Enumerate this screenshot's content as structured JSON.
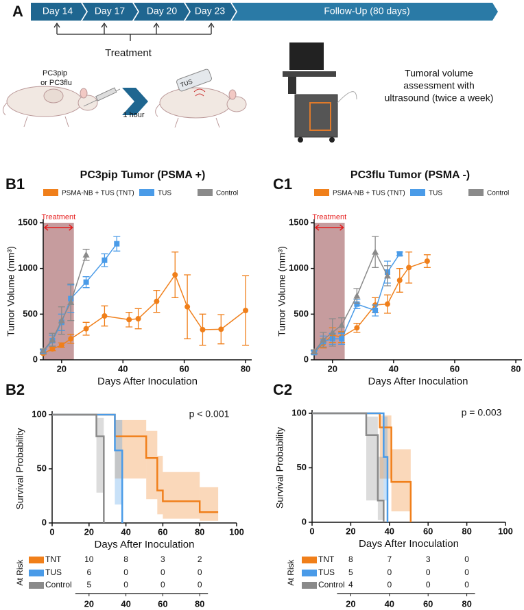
{
  "panel_a": {
    "label": "A",
    "timeline": [
      "Day 14",
      "Day 17",
      "Day 20",
      "Day 23",
      "Follow-Up (80 days)"
    ],
    "treatment": "Treatment",
    "cells": [
      "PC3pip",
      "or PC3flu"
    ],
    "device": "TUS",
    "delay": "1 hour",
    "assessment": [
      "Tumoral volume",
      "assessment with",
      "ultrasound (twice a week)"
    ]
  },
  "chart_data": [
    {
      "type": "line",
      "panel": "B1",
      "title": "PC3pip Tumor (PSMA +)",
      "x_label": "Days After Inoculation",
      "y_label": "Tumor Volume (mm³)",
      "annotation": "Treatment",
      "treatment_window": [
        14,
        24
      ],
      "xlim": [
        14,
        82
      ],
      "xticks": [
        20,
        40,
        60,
        80
      ],
      "ylim": [
        0,
        1500
      ],
      "yticks": [
        0,
        500,
        1000,
        1500
      ],
      "series": [
        {
          "name": "PSMA-NB + TUS (TNT)",
          "color": "#f07f1a",
          "marker": "circle",
          "x": [
            14,
            17,
            20,
            23,
            28,
            34,
            42,
            45,
            51,
            57,
            61,
            66,
            72,
            80
          ],
          "values": [
            70,
            120,
            160,
            230,
            340,
            480,
            440,
            450,
            640,
            930,
            580,
            330,
            335,
            540
          ],
          "errors": [
            10,
            20,
            25,
            50,
            70,
            110,
            80,
            110,
            120,
            250,
            350,
            170,
            160,
            380
          ]
        },
        {
          "name": "TUS",
          "color": "#4a9be8",
          "marker": "square",
          "x": [
            14,
            17,
            20,
            23,
            28,
            34,
            38
          ],
          "values": [
            90,
            210,
            410,
            670,
            850,
            1090,
            1270
          ],
          "errors": [
            20,
            60,
            90,
            150,
            60,
            70,
            80
          ]
        },
        {
          "name": "Control",
          "color": "#8a8a8a",
          "marker": "triangle",
          "x": [
            14,
            17,
            20,
            23,
            28
          ],
          "values": [
            100,
            220,
            430,
            630,
            1150
          ],
          "errors": [
            20,
            70,
            150,
            200,
            60
          ]
        }
      ]
    },
    {
      "type": "line",
      "panel": "C1",
      "title": "PC3flu Tumor (PSMA -)",
      "x_label": "Days After Inoculation",
      "y_label": "Tumor Volume (mm³)",
      "annotation": "Treatment",
      "treatment_window": [
        14,
        24
      ],
      "xlim": [
        14,
        82
      ],
      "xticks": [
        20,
        40,
        60,
        80
      ],
      "ylim": [
        0,
        1500
      ],
      "yticks": [
        0,
        500,
        1000,
        1500
      ],
      "series": [
        {
          "name": "PSMA-NB + TUS (TNT)",
          "color": "#f07f1a",
          "marker": "circle",
          "x": [
            14,
            17,
            20,
            23,
            28,
            34,
            38,
            42,
            45,
            51
          ],
          "values": [
            80,
            180,
            270,
            250,
            350,
            600,
            610,
            870,
            1010,
            1080
          ],
          "errors": [
            20,
            50,
            80,
            60,
            50,
            80,
            100,
            130,
            170,
            70
          ]
        },
        {
          "name": "TUS",
          "color": "#4a9be8",
          "marker": "square",
          "x": [
            14,
            17,
            20,
            23,
            28,
            34,
            38,
            42
          ],
          "values": [
            80,
            200,
            230,
            230,
            610,
            540,
            960,
            1160
          ],
          "errors": [
            20,
            60,
            60,
            60,
            50,
            60,
            120,
            20
          ]
        },
        {
          "name": "Control",
          "color": "#8a8a8a",
          "marker": "triangle",
          "x": [
            14,
            17,
            20,
            23,
            28,
            34,
            38
          ],
          "values": [
            90,
            220,
            300,
            380,
            700,
            1180,
            920
          ],
          "errors": [
            20,
            80,
            150,
            80,
            80,
            170,
            110
          ]
        }
      ]
    },
    {
      "type": "survival",
      "panel": "B2",
      "annotation": "p < 0.001",
      "x_label": "Days After Inoculation",
      "y_label": "Survival Probability",
      "xlim": [
        0,
        100
      ],
      "xticks": [
        0,
        20,
        40,
        60,
        80,
        100
      ],
      "ylim": [
        0,
        100
      ],
      "yticks": [
        0,
        50,
        100
      ],
      "risk_label": "At Risk",
      "risk_ticks": [
        20,
        40,
        60,
        80
      ],
      "series": [
        {
          "name": "TNT",
          "color": "#f07f1a",
          "times": [
            0,
            34,
            51,
            57,
            60,
            80,
            90
          ],
          "values": [
            100,
            80,
            60,
            30,
            20,
            10,
            10
          ],
          "lower": [
            100,
            41,
            22,
            8,
            4,
            2,
            2
          ],
          "upper": [
            100,
            95,
            85,
            62,
            47,
            33,
            33
          ],
          "at_risk": [
            10,
            8,
            3,
            2
          ]
        },
        {
          "name": "TUS",
          "color": "#4a9be8",
          "times": [
            0,
            34,
            38
          ],
          "values": [
            100,
            67,
            0
          ],
          "lower": [
            100,
            17,
            0
          ],
          "upper": [
            100,
            95,
            0
          ],
          "at_risk": [
            6,
            0,
            0,
            0
          ]
        },
        {
          "name": "Control",
          "color": "#8a8a8a",
          "times": [
            0,
            24,
            28
          ],
          "values": [
            100,
            80,
            0
          ],
          "lower": [
            100,
            28,
            0
          ],
          "upper": [
            100,
            97,
            0
          ],
          "at_risk": [
            5,
            0,
            0,
            0
          ]
        }
      ]
    },
    {
      "type": "survival",
      "panel": "C2",
      "annotation": "p = 0.003",
      "x_label": "Days After Inoculation",
      "y_label": "Survival Probability",
      "xlim": [
        0,
        100
      ],
      "xticks": [
        0,
        20,
        40,
        60,
        80,
        100
      ],
      "ylim": [
        0,
        100
      ],
      "yticks": [
        0,
        50,
        100
      ],
      "risk_label": "At Risk",
      "risk_ticks": [
        20,
        40,
        60,
        80
      ],
      "series": [
        {
          "name": "TNT",
          "color": "#f07f1a",
          "times": [
            0,
            35,
            41,
            51
          ],
          "values": [
            100,
            87,
            37,
            0
          ],
          "lower": [
            100,
            40,
            10,
            0
          ],
          "upper": [
            100,
            98,
            67,
            0
          ],
          "at_risk": [
            8,
            7,
            3,
            0
          ]
        },
        {
          "name": "TUS",
          "color": "#4a9be8",
          "times": [
            0,
            37,
            39
          ],
          "values": [
            100,
            60,
            0
          ],
          "lower": [
            100,
            20,
            0
          ],
          "upper": [
            100,
            97,
            0
          ],
          "at_risk": [
            5,
            0,
            0,
            0
          ]
        },
        {
          "name": "Control",
          "color": "#8a8a8a",
          "times": [
            0,
            28,
            34,
            37
          ],
          "values": [
            100,
            80,
            20,
            0
          ],
          "lower": [
            100,
            20,
            2,
            0
          ],
          "upper": [
            100,
            97,
            60,
            0
          ],
          "at_risk": [
            4,
            0,
            0,
            0
          ]
        }
      ]
    }
  ]
}
